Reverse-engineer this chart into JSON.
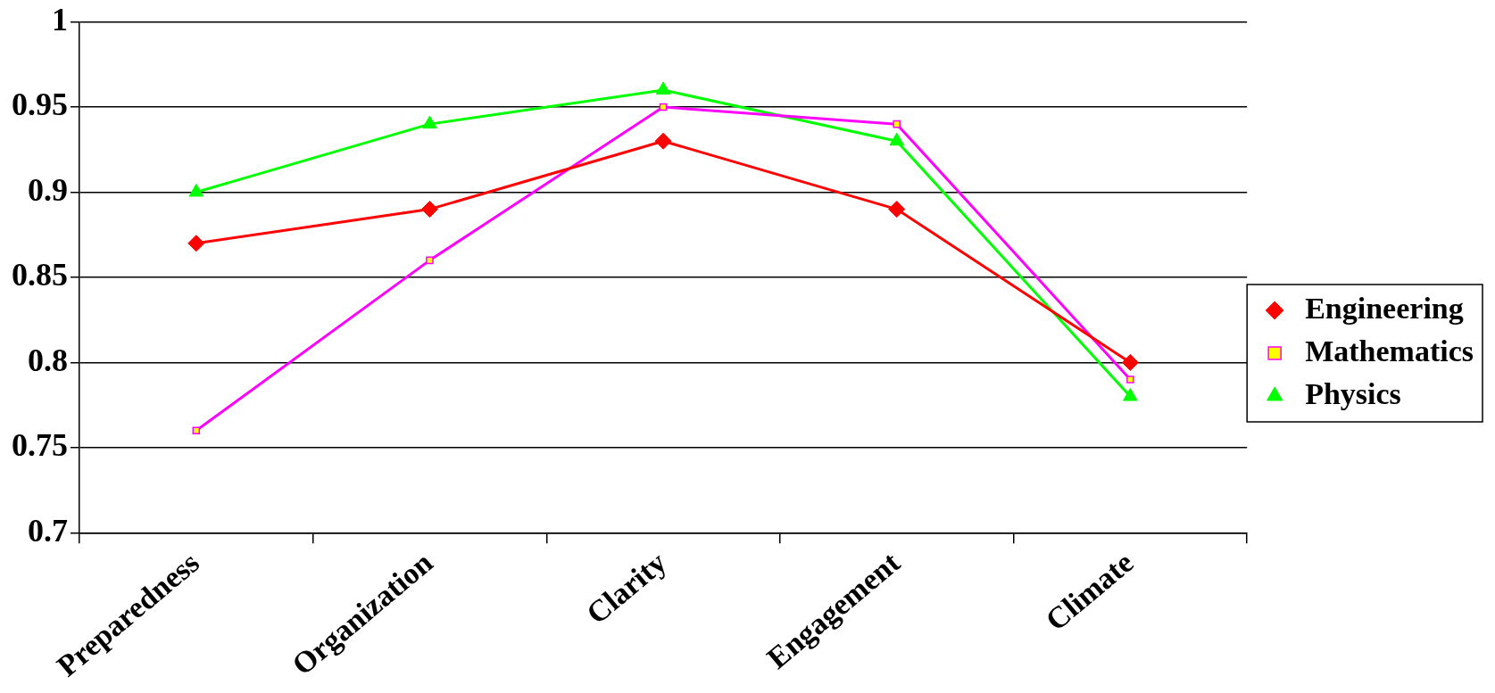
{
  "chart_data": {
    "type": "line",
    "categories": [
      "Preparedness",
      "Organization",
      "Clarity",
      "Engagement",
      "Climate"
    ],
    "series": [
      {
        "name": "Engineering",
        "color": "#ff0000",
        "marker": "diamond",
        "values": [
          0.87,
          0.89,
          0.93,
          0.89,
          0.8
        ]
      },
      {
        "name": "Mathematics",
        "color": "#ff00ff",
        "marker": "square",
        "values": [
          0.76,
          0.86,
          0.95,
          0.94,
          0.79
        ]
      },
      {
        "name": "Physics",
        "color": "#00ff00",
        "marker": "triangle",
        "values": [
          0.9,
          0.94,
          0.96,
          0.93,
          0.78
        ]
      }
    ],
    "ylim": [
      0.7,
      1
    ],
    "yticks": [
      {
        "value": 0.7,
        "label": "0.7"
      },
      {
        "value": 0.75,
        "label": "0.75"
      },
      {
        "value": 0.8,
        "label": "0.8"
      },
      {
        "value": 0.85,
        "label": "0.85"
      },
      {
        "value": 0.9,
        "label": "0.9"
      },
      {
        "value": 0.95,
        "label": "0.95"
      },
      {
        "value": 1,
        "label": "1"
      }
    ],
    "grid": "y",
    "legend": "right",
    "line_style": "solid"
  }
}
